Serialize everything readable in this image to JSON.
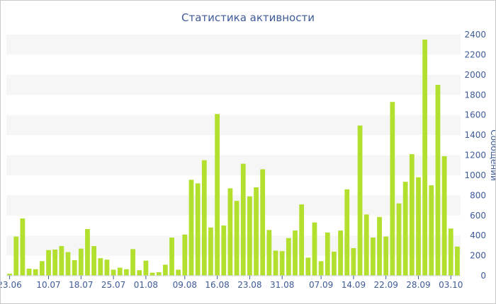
{
  "chart_data": {
    "type": "bar",
    "title": "Статистика активности",
    "ylabel": "Сообщений",
    "xlabel": "",
    "ylim": [
      0,
      2400
    ],
    "yticks": [
      0,
      200,
      400,
      600,
      800,
      1000,
      1200,
      1400,
      1600,
      1800,
      2000,
      2200,
      2400
    ],
    "y_axis_side": "right",
    "grid": "alternating horizontal bands",
    "xtick_labels": [
      "23.06",
      "10.07",
      "18.07",
      "25.07",
      "01.08",
      "09.08",
      "16.08",
      "23.08",
      "31.08",
      "07.09",
      "14.09",
      "22.09",
      "28.09",
      "03.10"
    ],
    "xtick_positions": [
      0,
      6,
      11,
      16,
      21,
      27,
      32,
      37,
      42,
      48,
      53,
      58,
      63,
      68
    ],
    "values": [
      20,
      390,
      570,
      70,
      65,
      145,
      255,
      260,
      295,
      235,
      155,
      270,
      465,
      295,
      175,
      160,
      60,
      80,
      65,
      265,
      55,
      150,
      30,
      35,
      110,
      380,
      60,
      410,
      955,
      920,
      1150,
      480,
      1610,
      500,
      870,
      745,
      1115,
      790,
      880,
      1060,
      455,
      250,
      245,
      375,
      450,
      710,
      180,
      530,
      145,
      430,
      240,
      450,
      860,
      275,
      1495,
      610,
      380,
      585,
      390,
      1730,
      720,
      935,
      1210,
      980,
      2350,
      900,
      1900,
      1190,
      470,
      290
    ],
    "bar_color": "#b3e02e",
    "band_color": "#f6f6f6"
  }
}
